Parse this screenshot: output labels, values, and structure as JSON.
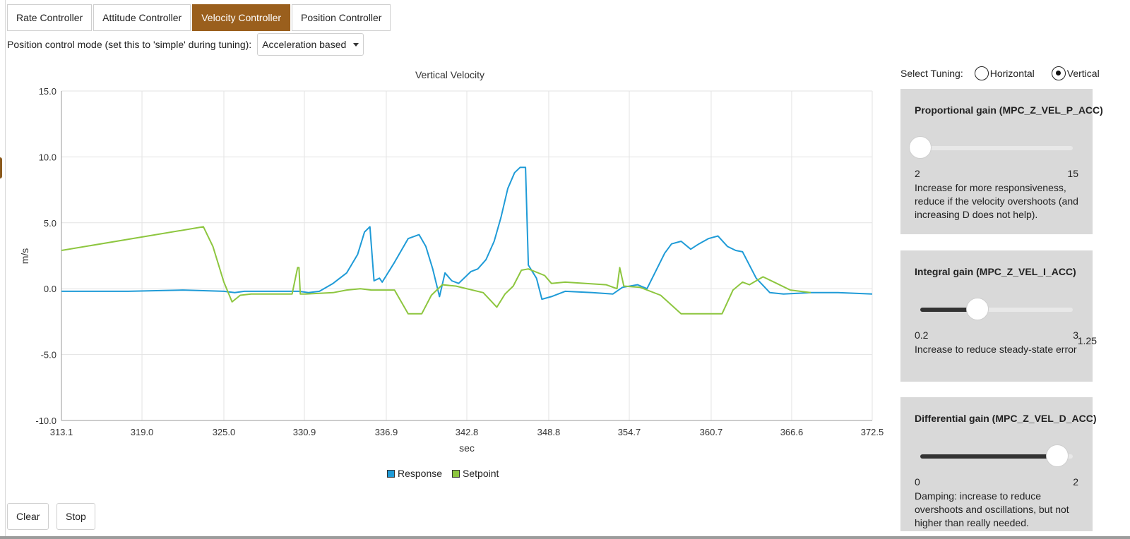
{
  "tabs": [
    {
      "label": "Rate Controller",
      "active": false
    },
    {
      "label": "Attitude Controller",
      "active": false
    },
    {
      "label": "Velocity Controller",
      "active": true
    },
    {
      "label": "Position Controller",
      "active": false
    }
  ],
  "mode": {
    "label": "Position control mode (set this to 'simple' during tuning):",
    "selected": "Acceleration based"
  },
  "buttons": {
    "clear": "Clear",
    "stop": "Stop"
  },
  "tuning": {
    "label": "Select Tuning:",
    "options": [
      {
        "label": "Horizontal",
        "checked": false
      },
      {
        "label": "Vertical",
        "checked": true
      }
    ]
  },
  "params": [
    {
      "title": "Proportional gain (MPC_Z_VEL_P_ACC)",
      "min": "2",
      "max": "15",
      "value_fraction": 0.0,
      "value_label": "",
      "description": "Increase for more responsiveness, reduce if the velocity overshoots (and increasing D does not help)."
    },
    {
      "title": "Integral gain (MPC_Z_VEL_I_ACC)",
      "min": "0.2",
      "max": "3",
      "value_fraction": 0.375,
      "value_label": "1.25",
      "description": "Increase to reduce steady-state error"
    },
    {
      "title": "Differential gain (MPC_Z_VEL_D_ACC)",
      "min": "0",
      "max": "2",
      "value_fraction": 0.9,
      "value_label": "",
      "description": "Damping: increase to reduce overshoots and oscillations, but not higher than really needed."
    }
  ],
  "colors": {
    "accent": "#9a5f1d",
    "response": "#1f9bd7",
    "setpoint": "#8dc63f"
  },
  "chart_data": {
    "type": "line",
    "title": "Vertical Velocity",
    "xlabel": "sec",
    "ylabel": "m/s",
    "xlim": [
      313.1,
      372.5
    ],
    "ylim": [
      -10,
      15
    ],
    "xticks": [
      "313.1",
      "319.0",
      "325.0",
      "330.9",
      "336.9",
      "342.8",
      "348.8",
      "354.7",
      "360.7",
      "366.6",
      "372.5"
    ],
    "yticks": [
      "15.0",
      "10.0",
      "5.0",
      "0.0",
      "-5.0",
      "-10.0"
    ],
    "grid": true,
    "legend_position": "bottom",
    "series": [
      {
        "name": "Response",
        "color": "#1f9bd7",
        "x": [
          313.1,
          318.0,
          322.0,
          325.0,
          325.8,
          326.5,
          328.0,
          330.5,
          331.2,
          332.0,
          333.0,
          334.0,
          334.8,
          335.3,
          335.7,
          336.0,
          336.4,
          336.6,
          337.5,
          338.5,
          339.3,
          339.8,
          340.3,
          340.8,
          341.2,
          341.7,
          342.2,
          342.8,
          343.1,
          343.6,
          344.2,
          344.8,
          345.3,
          345.8,
          346.3,
          346.7,
          347.1,
          347.3,
          347.3,
          347.9,
          348.3,
          349.0,
          350.0,
          352.0,
          353.5,
          354.2,
          355.3,
          356.0,
          357.3,
          357.8,
          358.5,
          359.2,
          359.8,
          360.5,
          361.2,
          361.9,
          362.5,
          363.0,
          364.0,
          365.0,
          366.0,
          368.0,
          370.0,
          372.5
        ],
        "y": [
          -0.2,
          -0.2,
          -0.1,
          -0.2,
          -0.3,
          -0.2,
          -0.2,
          -0.2,
          -0.3,
          -0.2,
          0.4,
          1.2,
          2.6,
          4.3,
          4.7,
          0.6,
          0.8,
          0.5,
          2.0,
          3.8,
          4.1,
          3.2,
          1.5,
          -0.6,
          1.2,
          0.6,
          0.4,
          1.0,
          1.3,
          1.5,
          2.2,
          3.6,
          5.4,
          7.6,
          8.8,
          9.2,
          9.2,
          2.0,
          1.8,
          0.8,
          -0.8,
          -0.6,
          -0.2,
          -0.3,
          -0.4,
          0.1,
          0.3,
          0.0,
          2.7,
          3.4,
          3.6,
          3.0,
          3.4,
          3.8,
          4.0,
          3.2,
          2.9,
          2.8,
          0.8,
          -0.3,
          -0.4,
          -0.3,
          -0.3,
          -0.4
        ]
      },
      {
        "name": "Setpoint",
        "color": "#8dc63f",
        "x": [
          313.1,
          323.5,
          324.2,
          325.0,
          325.6,
          326.2,
          327.0,
          330.0,
          330.4,
          330.5,
          330.6,
          331.0,
          333.0,
          334.0,
          335.0,
          335.8,
          336.0,
          337.5,
          338.5,
          339.0,
          339.5,
          340.2,
          341.0,
          342.0,
          344.0,
          345.0,
          345.6,
          346.2,
          346.8,
          347.3,
          348.5,
          349.0,
          350.0,
          353.0,
          353.8,
          354.0,
          354.3,
          355.5,
          357.0,
          358.5,
          361.5,
          362.3,
          363.0,
          363.5,
          364.5,
          365.5,
          366.5,
          368.0
        ],
        "y": [
          2.9,
          4.7,
          3.2,
          0.5,
          -1.0,
          -0.5,
          -0.4,
          -0.4,
          1.6,
          1.6,
          -0.4,
          -0.4,
          -0.3,
          -0.1,
          0.0,
          -0.1,
          -0.1,
          -0.1,
          -1.9,
          -1.9,
          -1.9,
          -0.5,
          0.3,
          0.2,
          -0.3,
          -1.4,
          -0.4,
          0.2,
          1.4,
          1.5,
          1.0,
          0.4,
          0.5,
          0.3,
          0.0,
          1.6,
          0.2,
          0.1,
          -0.5,
          -1.9,
          -1.9,
          -0.1,
          0.5,
          0.3,
          0.9,
          0.4,
          -0.1,
          -0.3
        ]
      }
    ]
  }
}
